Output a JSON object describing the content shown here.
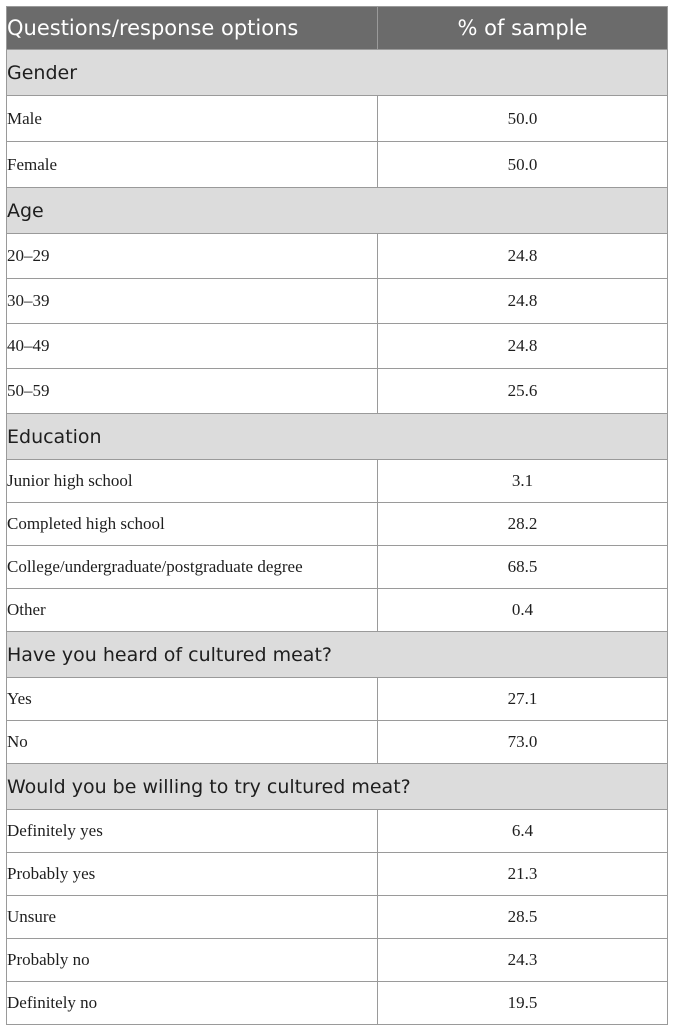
{
  "table": {
    "header": {
      "col1": "Questions/response options",
      "col2": "% of sample"
    },
    "sections": [
      {
        "title": "Gender",
        "rows": [
          {
            "label": "Male",
            "value": "50.0"
          },
          {
            "label": "Female",
            "value": "50.0"
          }
        ]
      },
      {
        "title": "Age",
        "rows": [
          {
            "label": "20–29",
            "value": "24.8"
          },
          {
            "label": "30–39",
            "value": "24.8"
          },
          {
            "label": "40–49",
            "value": "24.8"
          },
          {
            "label": "50–59",
            "value": "25.6"
          }
        ]
      },
      {
        "title": "Education",
        "rows": [
          {
            "label": "Junior high school",
            "value": "3.1"
          },
          {
            "label": "Completed high school",
            "value": "28.2"
          },
          {
            "label": "College/undergraduate/postgraduate degree",
            "value": "68.5"
          },
          {
            "label": "Other",
            "value": "0.4"
          }
        ]
      },
      {
        "title": "Have you heard of cultured meat?",
        "rows": [
          {
            "label": "Yes",
            "value": "27.1"
          },
          {
            "label": "No",
            "value": "73.0"
          }
        ]
      },
      {
        "title": "Would you be willing to try cultured meat?",
        "rows": [
          {
            "label": "Definitely yes",
            "value": "6.4"
          },
          {
            "label": "Probably yes",
            "value": "21.3"
          },
          {
            "label": "Unsure",
            "value": "28.5"
          },
          {
            "label": "Probably no",
            "value": "24.3"
          },
          {
            "label": "Definitely no",
            "value": "19.5"
          }
        ]
      }
    ]
  }
}
